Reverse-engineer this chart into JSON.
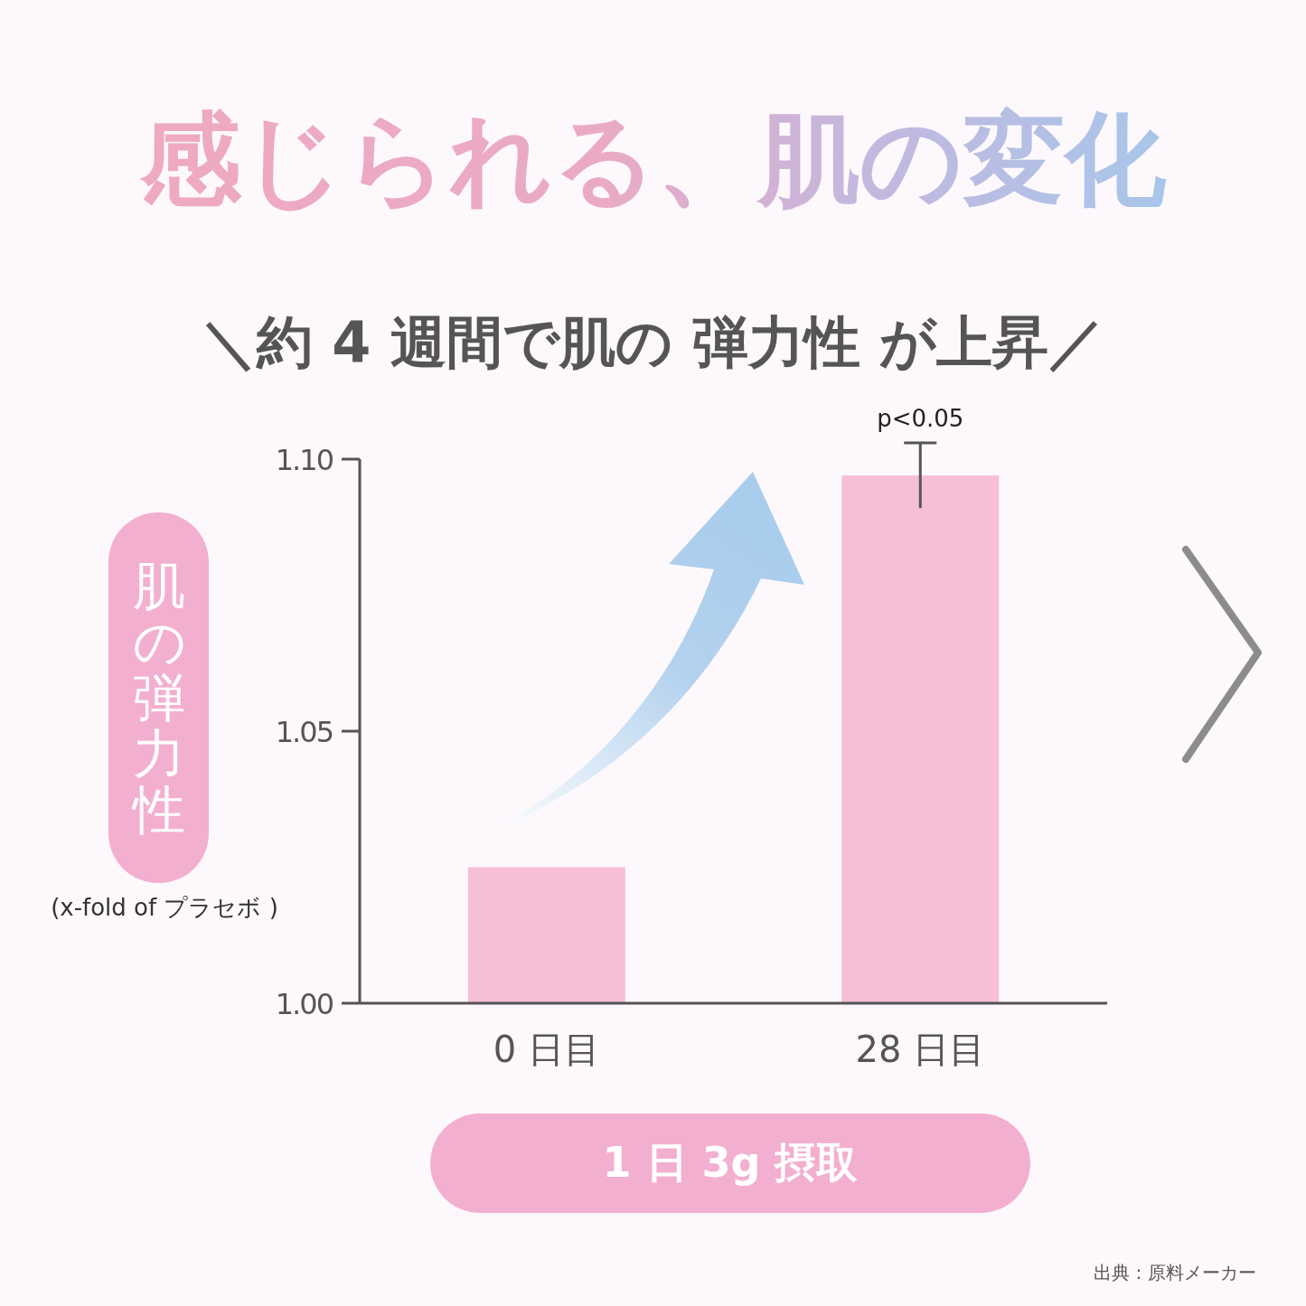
{
  "chart_data": {
    "type": "bar",
    "title": "感じられる、肌の変化",
    "subtitle": "＼約 4 週間で肌の 弾力性 が上昇／",
    "ylabel": "肌の弾力性",
    "categories": [
      "0 日目",
      "28 日目"
    ],
    "values": [
      1.025,
      1.097
    ],
    "errors": [
      null,
      0.006
    ],
    "color": "#f7bed8",
    "ylim": [
      1.0,
      1.1
    ],
    "yticks": [
      {
        "value": 1.0,
        "label": "1.00"
      },
      {
        "value": 1.05,
        "label": "1.05"
      },
      {
        "value": 1.1,
        "label": "1.10"
      }
    ],
    "grid": false,
    "annotations": [
      "(x-fold of プラセボ )",
      {
        "text": "p<0.05",
        "x": "28 日目",
        "y": 1.104
      },
      "1 日 3g 摂取",
      "出典：原料メーカー"
    ]
  }
}
